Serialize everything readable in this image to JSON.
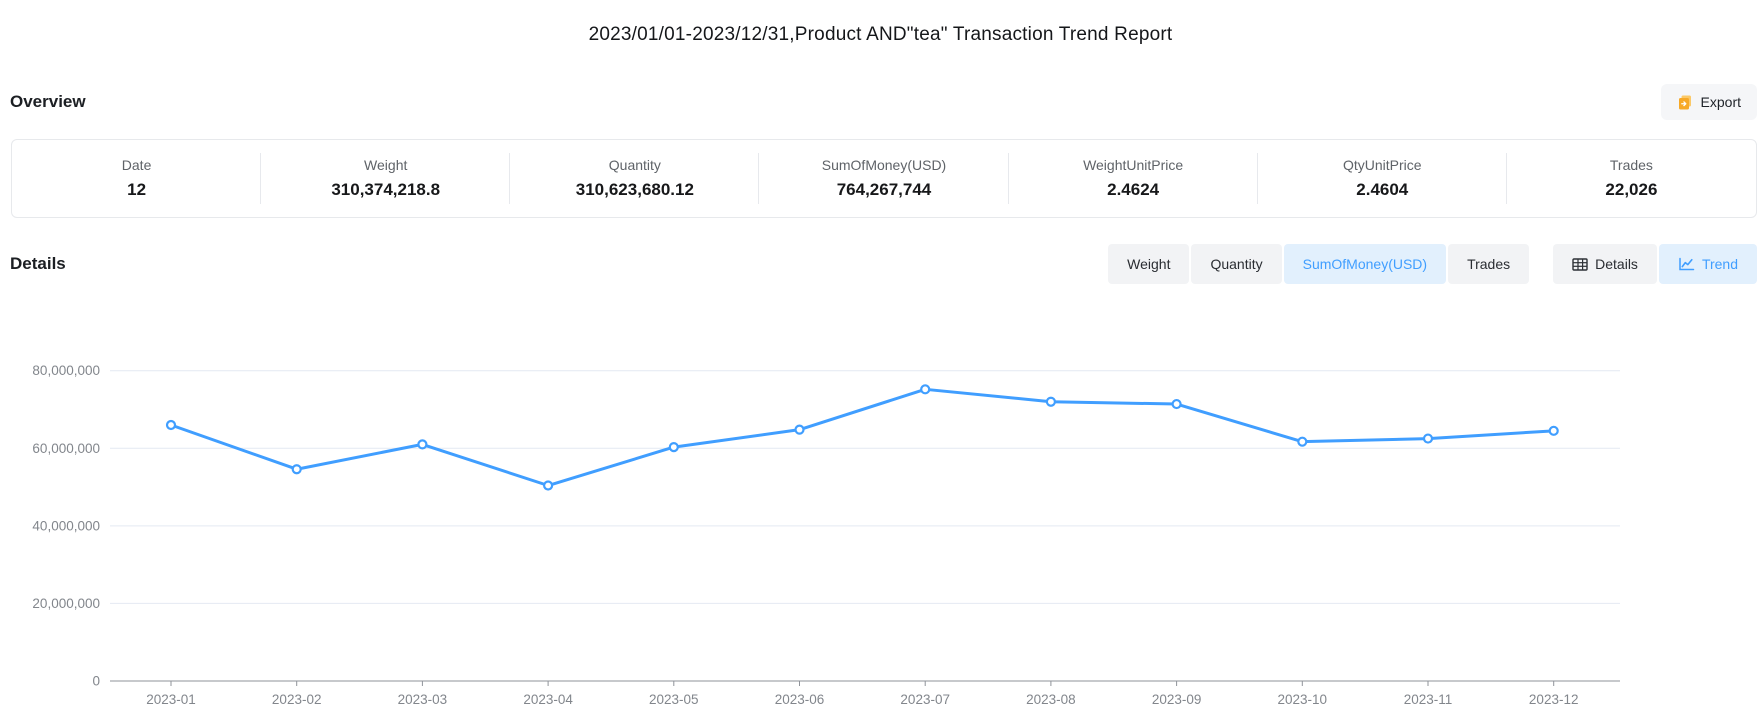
{
  "title": "2023/01/01-2023/12/31,Product AND\"tea\" Transaction Trend Report",
  "overview": {
    "heading": "Overview",
    "export_label": "Export",
    "stats": [
      {
        "label": "Date",
        "value": "12"
      },
      {
        "label": "Weight",
        "value": "310,374,218.8"
      },
      {
        "label": "Quantity",
        "value": "310,623,680.12"
      },
      {
        "label": "SumOfMoney(USD)",
        "value": "764,267,744"
      },
      {
        "label": "WeightUnitPrice",
        "value": "2.4624"
      },
      {
        "label": "QtyUnitPrice",
        "value": "2.4604"
      },
      {
        "label": "Trades",
        "value": "22,026"
      }
    ]
  },
  "details": {
    "heading": "Details",
    "metric_tabs": [
      {
        "label": "Weight",
        "active": false
      },
      {
        "label": "Quantity",
        "active": false
      },
      {
        "label": "SumOfMoney(USD)",
        "active": true
      },
      {
        "label": "Trades",
        "active": false
      }
    ],
    "view_tabs": [
      {
        "label": "Details",
        "icon": "table-icon",
        "active": false
      },
      {
        "label": "Trend",
        "icon": "trend-icon",
        "active": true
      }
    ]
  },
  "colors": {
    "accent_blue": "#409eff",
    "active_tab_bg": "#e2f0fd",
    "inactive_tab_bg": "#f2f3f5",
    "export_icon_orange": "#f7a928",
    "gridline": "#e4e9f2",
    "axis_line": "#8f939a",
    "axis_label": "#82868c"
  },
  "chart_data": {
    "type": "line",
    "title": "",
    "x": [
      "2023-01",
      "2023-02",
      "2023-03",
      "2023-04",
      "2023-05",
      "2023-06",
      "2023-07",
      "2023-08",
      "2023-09",
      "2023-10",
      "2023-11",
      "2023-12"
    ],
    "series": [
      {
        "name": "SumOfMoney(USD)",
        "values": [
          66000000,
          54600000,
          61000000,
          50400000,
          60300000,
          64800000,
          75200000,
          72000000,
          71400000,
          61700000,
          62500000,
          64500000
        ]
      }
    ],
    "xlabel": "",
    "ylabel": "",
    "ylim": [
      0,
      80000000
    ],
    "ytick_step": 20000000,
    "grid": true,
    "legend_position": "none",
    "marker": "hollow-circle",
    "line_color": "#409eff"
  }
}
